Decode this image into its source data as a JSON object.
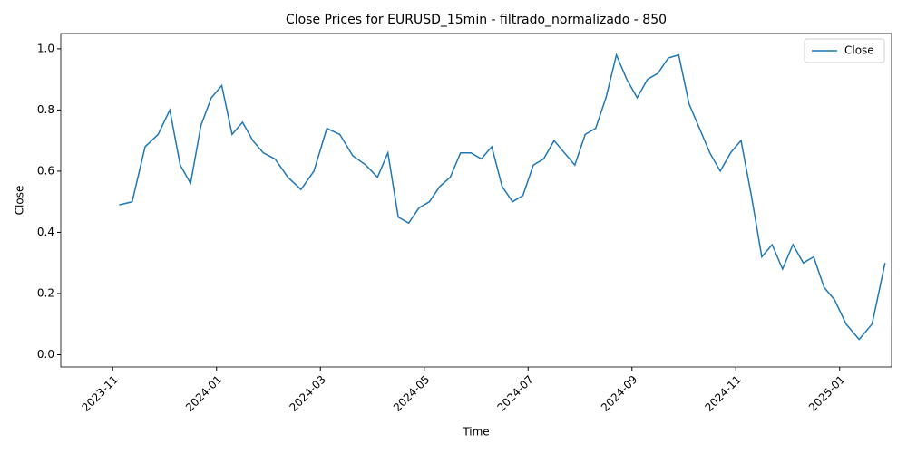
{
  "chart_data": {
    "type": "line",
    "title": "Close Prices for EURUSD_15min - filtrado_normalizado - 850",
    "xlabel": "Time",
    "ylabel": "Close",
    "x": [
      "2023-11",
      "2023-11",
      "2023-11",
      "2023-11",
      "2023-12",
      "2023-12",
      "2023-12",
      "2023-12",
      "2023-12",
      "2024-01",
      "2024-01",
      "2024-01",
      "2024-01",
      "2024-01",
      "2024-02",
      "2024-02",
      "2024-02",
      "2024-02",
      "2024-03",
      "2024-03",
      "2024-03",
      "2024-03",
      "2024-04",
      "2024-04",
      "2024-04",
      "2024-04",
      "2024-04",
      "2024-05",
      "2024-05",
      "2024-05",
      "2024-05",
      "2024-05",
      "2024-06",
      "2024-06",
      "2024-06",
      "2024-06",
      "2024-06",
      "2024-07",
      "2024-07",
      "2024-07",
      "2024-07",
      "2024-07",
      "2024-08",
      "2024-08",
      "2024-08",
      "2024-08",
      "2024-08",
      "2024-09",
      "2024-09",
      "2024-09",
      "2024-09",
      "2024-09",
      "2024-10",
      "2024-10",
      "2024-10",
      "2024-10",
      "2024-10",
      "2024-11",
      "2024-11",
      "2024-11",
      "2024-11",
      "2024-11",
      "2024-12",
      "2024-12",
      "2024-12",
      "2024-12",
      "2024-12",
      "2025-01",
      "2025-01",
      "2025-01",
      "2025-01"
    ],
    "series": [
      {
        "name": "Close",
        "color": "#1f77b4",
        "values": [
          0.49,
          0.5,
          0.68,
          0.72,
          0.8,
          0.62,
          0.56,
          0.75,
          0.84,
          0.88,
          0.72,
          0.76,
          0.7,
          0.66,
          0.64,
          0.58,
          0.54,
          0.6,
          0.74,
          0.72,
          0.65,
          0.62,
          0.58,
          0.66,
          0.45,
          0.43,
          0.48,
          0.5,
          0.55,
          0.58,
          0.66,
          0.66,
          0.64,
          0.68,
          0.55,
          0.5,
          0.52,
          0.62,
          0.64,
          0.7,
          0.66,
          0.62,
          0.72,
          0.74,
          0.84,
          0.98,
          0.9,
          0.84,
          0.9,
          0.92,
          0.97,
          0.98,
          0.82,
          0.74,
          0.66,
          0.6,
          0.66,
          0.7,
          0.52,
          0.32,
          0.36,
          0.28,
          0.36,
          0.3,
          0.32,
          0.22,
          0.18,
          0.1,
          0.05,
          0.1,
          0.3
        ]
      }
    ],
    "xlim": [
      "2023-10",
      "2025-02"
    ],
    "xticks": [
      "2023-11",
      "2024-01",
      "2024-03",
      "2024-05",
      "2024-07",
      "2024-09",
      "2024-11",
      "2025-01"
    ],
    "ylim": [
      -0.04,
      1.05
    ],
    "yticks": [
      {
        "value": 0,
        "label": "0.0"
      },
      {
        "value": 0.2,
        "label": "0.2"
      },
      {
        "value": 0.4,
        "label": "0.4"
      },
      {
        "value": 0.6,
        "label": "0.6"
      },
      {
        "value": 0.8,
        "label": "0.8"
      },
      {
        "value": 1,
        "label": "1.0"
      }
    ],
    "legend": "upper right"
  }
}
